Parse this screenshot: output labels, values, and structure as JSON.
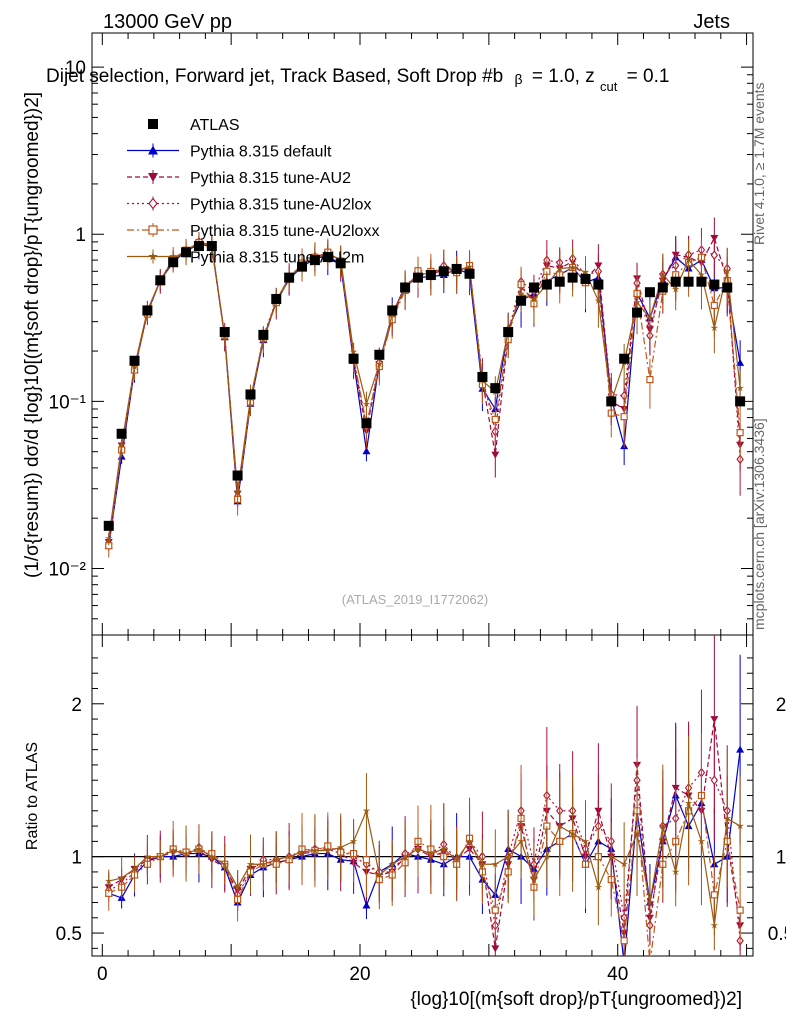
{
  "header": {
    "energy": "13000 GeV pp",
    "category": "Jets"
  },
  "title": "Dijet selection, Forward jet, Track Based, Soft Drop #b",
  "title_suffix": "= 1.0, z",
  "title_suffix_sub": "cut",
  "title_suffix_end": "= 0.1",
  "side_labels": {
    "rivet": "Rivet 4.1.0, ≥ 1.7M events",
    "mcplots": "mcplots.cern.ch [arXiv:1306.3436]"
  },
  "watermark": "(ATLAS_2019_I1772062)",
  "ylabel_main": "(1/σ{resum}) dσ/d {log}10[(m{soft drop}/pT{ungroomed})2]",
  "ylabel_ratio": "Ratio to ATLAS",
  "xlabel": "{log}10[(m{soft drop}/pT{ungroomed})2]",
  "colors": {
    "atlas": "#000000",
    "default": "#0000cc",
    "au2": "#9c0a3e",
    "au2lox": "#b0123a",
    "au2loxx": "#c0581c",
    "au2m": "#9c5a10"
  },
  "chart_data": {
    "type": "scatter",
    "xlim": [
      -0.8,
      50.5
    ],
    "ylim_main": [
      0.004,
      16
    ],
    "yscale_main": "log",
    "ylim_ratio": [
      0.35,
      2.45
    ],
    "x_ticks": [
      0,
      20,
      40
    ],
    "x_tick_labels": [
      "0",
      "20",
      "40"
    ],
    "y_ticks_main": [
      0.01,
      0.1,
      1,
      10
    ],
    "y_tick_labels_main": [
      "10⁻²",
      "10⁻¹",
      "1",
      "10"
    ],
    "y_ticks_ratio": [
      0.5,
      1,
      2
    ],
    "y_tick_labels_ratio": [
      "0.5",
      "1",
      "2"
    ],
    "legend": [
      {
        "name": "ATLAS",
        "key": "atlas",
        "marker": "square"
      },
      {
        "name": "Pythia 8.315 default",
        "key": "default",
        "marker": "triangle-up"
      },
      {
        "name": "Pythia 8.315 tune-AU2",
        "key": "au2",
        "marker": "triangle-down"
      },
      {
        "name": "Pythia 8.315 tune-AU2lox",
        "key": "au2lox",
        "marker": "diamond"
      },
      {
        "name": "Pythia 8.315 tune-AU2loxx",
        "key": "au2loxx",
        "marker": "square-open"
      },
      {
        "name": "Pythia 8.315 tune-AU2m",
        "key": "au2m",
        "marker": "star"
      }
    ],
    "x": [
      0.5,
      1.5,
      2.5,
      3.5,
      4.5,
      5.5,
      6.5,
      7.5,
      8.5,
      9.5,
      10.5,
      11.5,
      12.5,
      13.5,
      14.5,
      15.5,
      16.5,
      17.5,
      18.5,
      19.5,
      20.5,
      21.5,
      22.5,
      23.5,
      24.5,
      25.5,
      26.5,
      27.5,
      28.5,
      29.5,
      30.5,
      31.5,
      32.5,
      33.5,
      34.5,
      35.5,
      36.5,
      37.5,
      38.5,
      39.5,
      40.5,
      41.5,
      42.5,
      43.5,
      44.5,
      45.5,
      46.5,
      47.5,
      48.5,
      49.5
    ],
    "atlas": [
      0.018,
      0.064,
      0.175,
      0.35,
      0.53,
      0.68,
      0.78,
      0.85,
      0.85,
      0.26,
      0.036,
      0.11,
      0.25,
      0.41,
      0.55,
      0.64,
      0.7,
      0.73,
      0.67,
      0.18,
      0.074,
      0.19,
      0.35,
      0.48,
      0.55,
      0.57,
      0.6,
      0.62,
      0.58,
      0.14,
      0.12,
      0.26,
      0.4,
      0.48,
      0.5,
      0.52,
      0.55,
      0.54,
      0.5,
      0.1,
      0.18,
      0.34,
      0.45,
      0.48,
      0.52,
      0.52,
      0.52,
      0.5,
      0.48,
      0.1
    ],
    "series": [
      {
        "key": "default",
        "style": "solid",
        "ratio": [
          0.76,
          0.73,
          0.88,
          0.97,
          1.0,
          1.0,
          1.02,
          1.02,
          1.0,
          0.93,
          0.7,
          0.88,
          0.93,
          0.96,
          0.98,
          1.0,
          1.02,
          1.02,
          0.98,
          0.97,
          0.68,
          0.9,
          0.95,
          1.02,
          1.0,
          0.98,
          0.95,
          1.0,
          1.0,
          0.85,
          0.75,
          1.05,
          1.0,
          0.92,
          1.05,
          1.1,
          1.15,
          0.95,
          1.1,
          1.05,
          0.3,
          1.3,
          0.7,
          1.1,
          1.4,
          1.2,
          1.35,
          0.95,
          1.0,
          1.7
        ]
      },
      {
        "key": "au2",
        "style": "dash",
        "ratio": [
          0.8,
          0.85,
          0.92,
          0.98,
          1.0,
          1.03,
          1.02,
          1.04,
          0.98,
          0.93,
          0.78,
          0.92,
          0.96,
          0.96,
          0.98,
          1.02,
          1.03,
          1.05,
          1.02,
          0.96,
          0.9,
          0.88,
          0.9,
          1.0,
          1.05,
          1.0,
          1.03,
          0.98,
          1.05,
          0.95,
          0.4,
          0.95,
          1.2,
          0.85,
          1.3,
          1.2,
          1.25,
          1.0,
          1.3,
          1.0,
          0.5,
          1.6,
          0.6,
          1.1,
          1.45,
          1.4,
          1.3,
          1.9,
          1.1,
          0.55
        ]
      },
      {
        "key": "au2lox",
        "style": "dot",
        "ratio": [
          0.78,
          0.82,
          0.9,
          0.98,
          1.0,
          1.05,
          1.02,
          1.06,
          1.0,
          0.95,
          0.75,
          0.9,
          0.98,
          0.98,
          1.0,
          1.04,
          1.05,
          1.06,
          1.04,
          1.0,
          0.95,
          0.9,
          0.9,
          1.02,
          1.05,
          1.02,
          1.08,
          0.98,
          1.1,
          1.0,
          0.55,
          1.0,
          1.3,
          0.95,
          1.4,
          1.3,
          1.3,
          1.05,
          1.2,
          1.1,
          0.6,
          1.5,
          0.55,
          1.2,
          1.25,
          1.45,
          1.55,
          1.5,
          1.3,
          0.45
        ]
      },
      {
        "key": "au2loxx",
        "style": "dashdot",
        "ratio": [
          0.76,
          0.8,
          0.88,
          0.95,
          1.0,
          1.05,
          1.03,
          1.05,
          1.02,
          0.95,
          0.72,
          0.9,
          0.95,
          0.95,
          0.98,
          1.05,
          1.04,
          1.07,
          1.03,
          1.02,
          0.98,
          0.85,
          0.88,
          0.96,
          1.1,
          1.05,
          1.0,
          0.95,
          1.12,
          0.9,
          0.65,
          0.9,
          1.25,
          0.8,
          1.2,
          1.1,
          1.15,
          0.95,
          1.0,
          0.85,
          0.45,
          1.3,
          0.3,
          0.95,
          1.1,
          1.3,
          1.4,
          0.75,
          1.1,
          0.65
        ]
      },
      {
        "key": "au2m",
        "style": "solid",
        "ratio": [
          0.84,
          0.86,
          0.92,
          1.0,
          1.0,
          1.04,
          1.02,
          1.05,
          1.0,
          0.95,
          0.8,
          0.95,
          0.95,
          0.98,
          1.0,
          1.03,
          1.04,
          1.04,
          1.06,
          1.1,
          1.3,
          0.88,
          0.95,
          1.0,
          1.05,
          1.02,
          1.05,
          0.98,
          1.1,
          0.95,
          0.95,
          1.0,
          1.1,
          0.85,
          1.0,
          1.2,
          1.15,
          1.1,
          0.8,
          1.0,
          0.95,
          1.15,
          0.7,
          1.2,
          0.9,
          1.35,
          1.1,
          0.55,
          1.25,
          1.2
        ]
      }
    ]
  }
}
